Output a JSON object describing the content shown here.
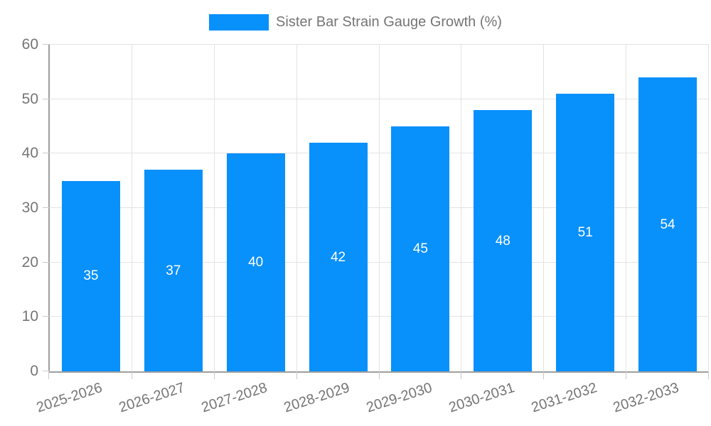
{
  "legend": {
    "label": "Sister Bar Strain Gauge Growth (%)"
  },
  "chart_data": {
    "type": "bar",
    "title": "",
    "series_name": "Sister Bar Strain Gauge Growth (%)",
    "categories": [
      "2025-2026",
      "2026-2027",
      "2027-2028",
      "2028-2029",
      "2029-2030",
      "2030-2031",
      "2031-2032",
      "2032-2033"
    ],
    "values": [
      35,
      37,
      40,
      42,
      45,
      48,
      51,
      54
    ],
    "bar_value_labels": [
      "35",
      "37",
      "40",
      "42",
      "45",
      "48",
      "51",
      "54"
    ],
    "xlabel": "",
    "ylabel": "",
    "ylim": [
      0,
      60
    ],
    "yticks": [
      0,
      10,
      20,
      30,
      40,
      50,
      60
    ],
    "grid": true,
    "legend_position": "top-center",
    "x_label_rotation_deg": -18
  },
  "colors": {
    "bar": "#0890fb",
    "bar_label": "#ffffff",
    "grid": "#e3e3e3",
    "axis": "#9e9e9e",
    "tick": "#c9c9c9",
    "text": "#757575",
    "background": "#ffffff"
  }
}
